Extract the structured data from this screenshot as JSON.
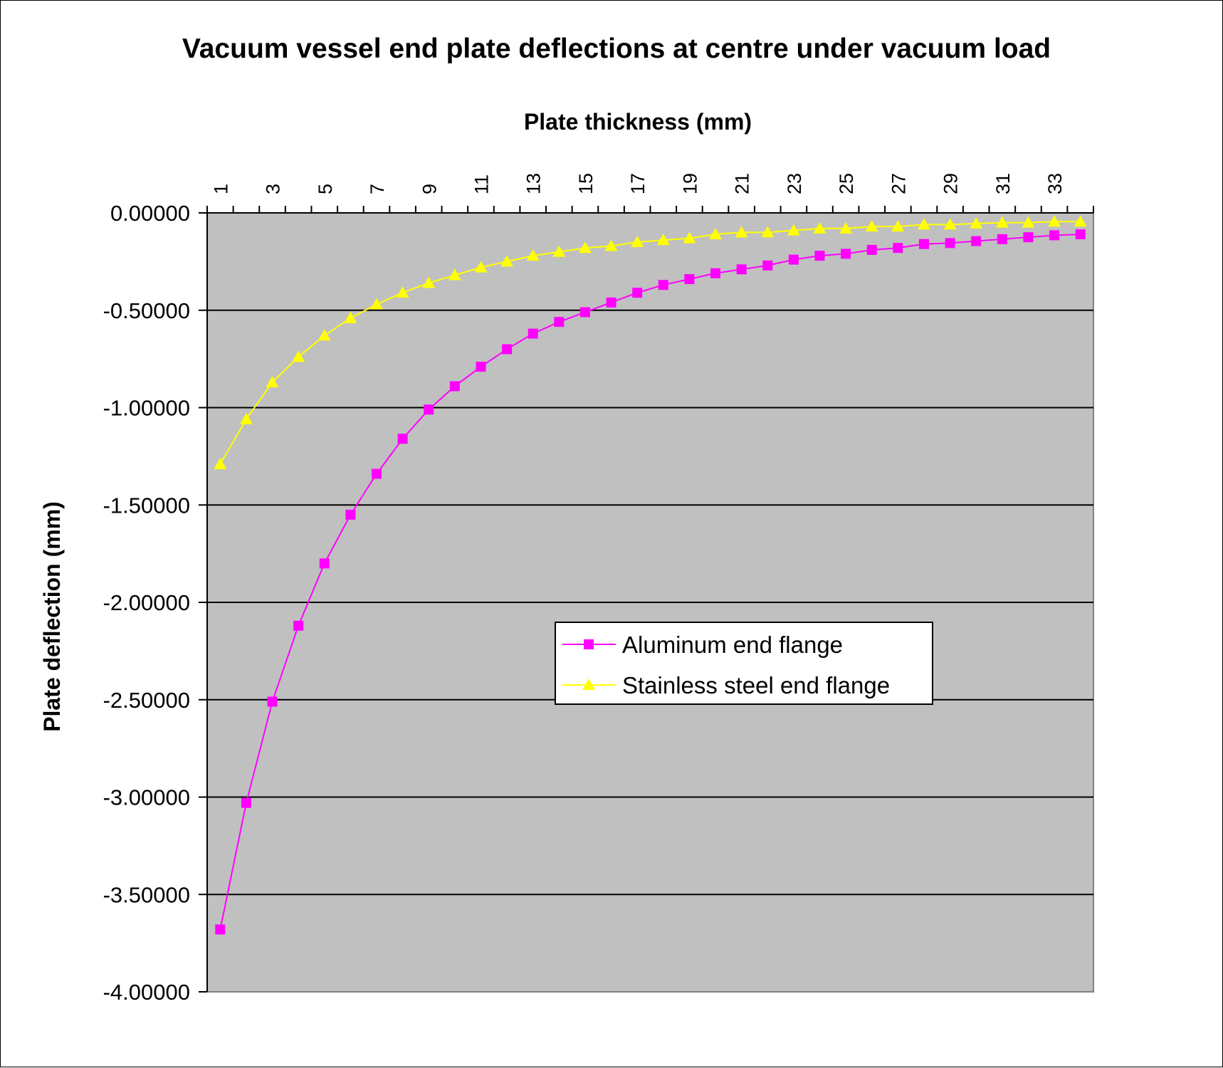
{
  "chart_data": {
    "type": "line",
    "title": "Vacuum vessel end plate deflections at centre under vacuum load",
    "xlabel": "Plate thickness (mm)",
    "ylabel": "Plate deflection (mm)",
    "x_axis_position": "top",
    "categories": [
      1,
      2,
      3,
      4,
      5,
      6,
      7,
      8,
      9,
      10,
      11,
      12,
      13,
      14,
      15,
      16,
      17,
      18,
      19,
      20,
      21,
      22,
      23,
      24,
      25,
      26,
      27,
      28,
      29,
      30,
      31,
      32,
      33,
      34
    ],
    "x_tick_labels": [
      "1",
      "3",
      "5",
      "7",
      "9",
      "11",
      "13",
      "15",
      "17",
      "19",
      "21",
      "23",
      "25",
      "27",
      "29",
      "31",
      "33"
    ],
    "ylim": [
      -4.0,
      0.0
    ],
    "y_ticks": [
      0,
      -0.5,
      -1.0,
      -1.5,
      -2.0,
      -2.5,
      -3.0,
      -3.5,
      -4.0
    ],
    "y_tick_labels": [
      "0.00000",
      "-0.50000",
      "-1.00000",
      "-1.50000",
      "-2.00000",
      "-2.50000",
      "-3.00000",
      "-3.50000",
      "-4.00000"
    ],
    "grid": {
      "horizontal": true,
      "vertical": false
    },
    "plot_background": "#C0C0C0",
    "legend_position": "center-right",
    "series": [
      {
        "name": "Aluminum end flange",
        "color": "#FF00FF",
        "marker": "square",
        "values": [
          -3.68,
          -3.03,
          -2.51,
          -2.12,
          -1.8,
          -1.55,
          -1.34,
          -1.16,
          -1.01,
          -0.89,
          -0.79,
          -0.7,
          -0.62,
          -0.56,
          -0.51,
          -0.46,
          -0.41,
          -0.37,
          -0.34,
          -0.31,
          -0.29,
          -0.27,
          -0.24,
          -0.22,
          -0.21,
          -0.19,
          -0.18,
          -0.16,
          -0.155,
          -0.145,
          -0.135,
          -0.125,
          -0.115,
          -0.11
        ]
      },
      {
        "name": "Stainless steel end flange",
        "color": "#FFFF00",
        "marker": "triangle",
        "values": [
          -1.29,
          -1.06,
          -0.87,
          -0.74,
          -0.63,
          -0.54,
          -0.47,
          -0.41,
          -0.36,
          -0.32,
          -0.28,
          -0.25,
          -0.22,
          -0.2,
          -0.18,
          -0.17,
          -0.15,
          -0.14,
          -0.13,
          -0.11,
          -0.1,
          -0.1,
          -0.09,
          -0.08,
          -0.08,
          -0.07,
          -0.07,
          -0.06,
          -0.06,
          -0.055,
          -0.05,
          -0.05,
          -0.045,
          -0.045
        ]
      }
    ]
  }
}
